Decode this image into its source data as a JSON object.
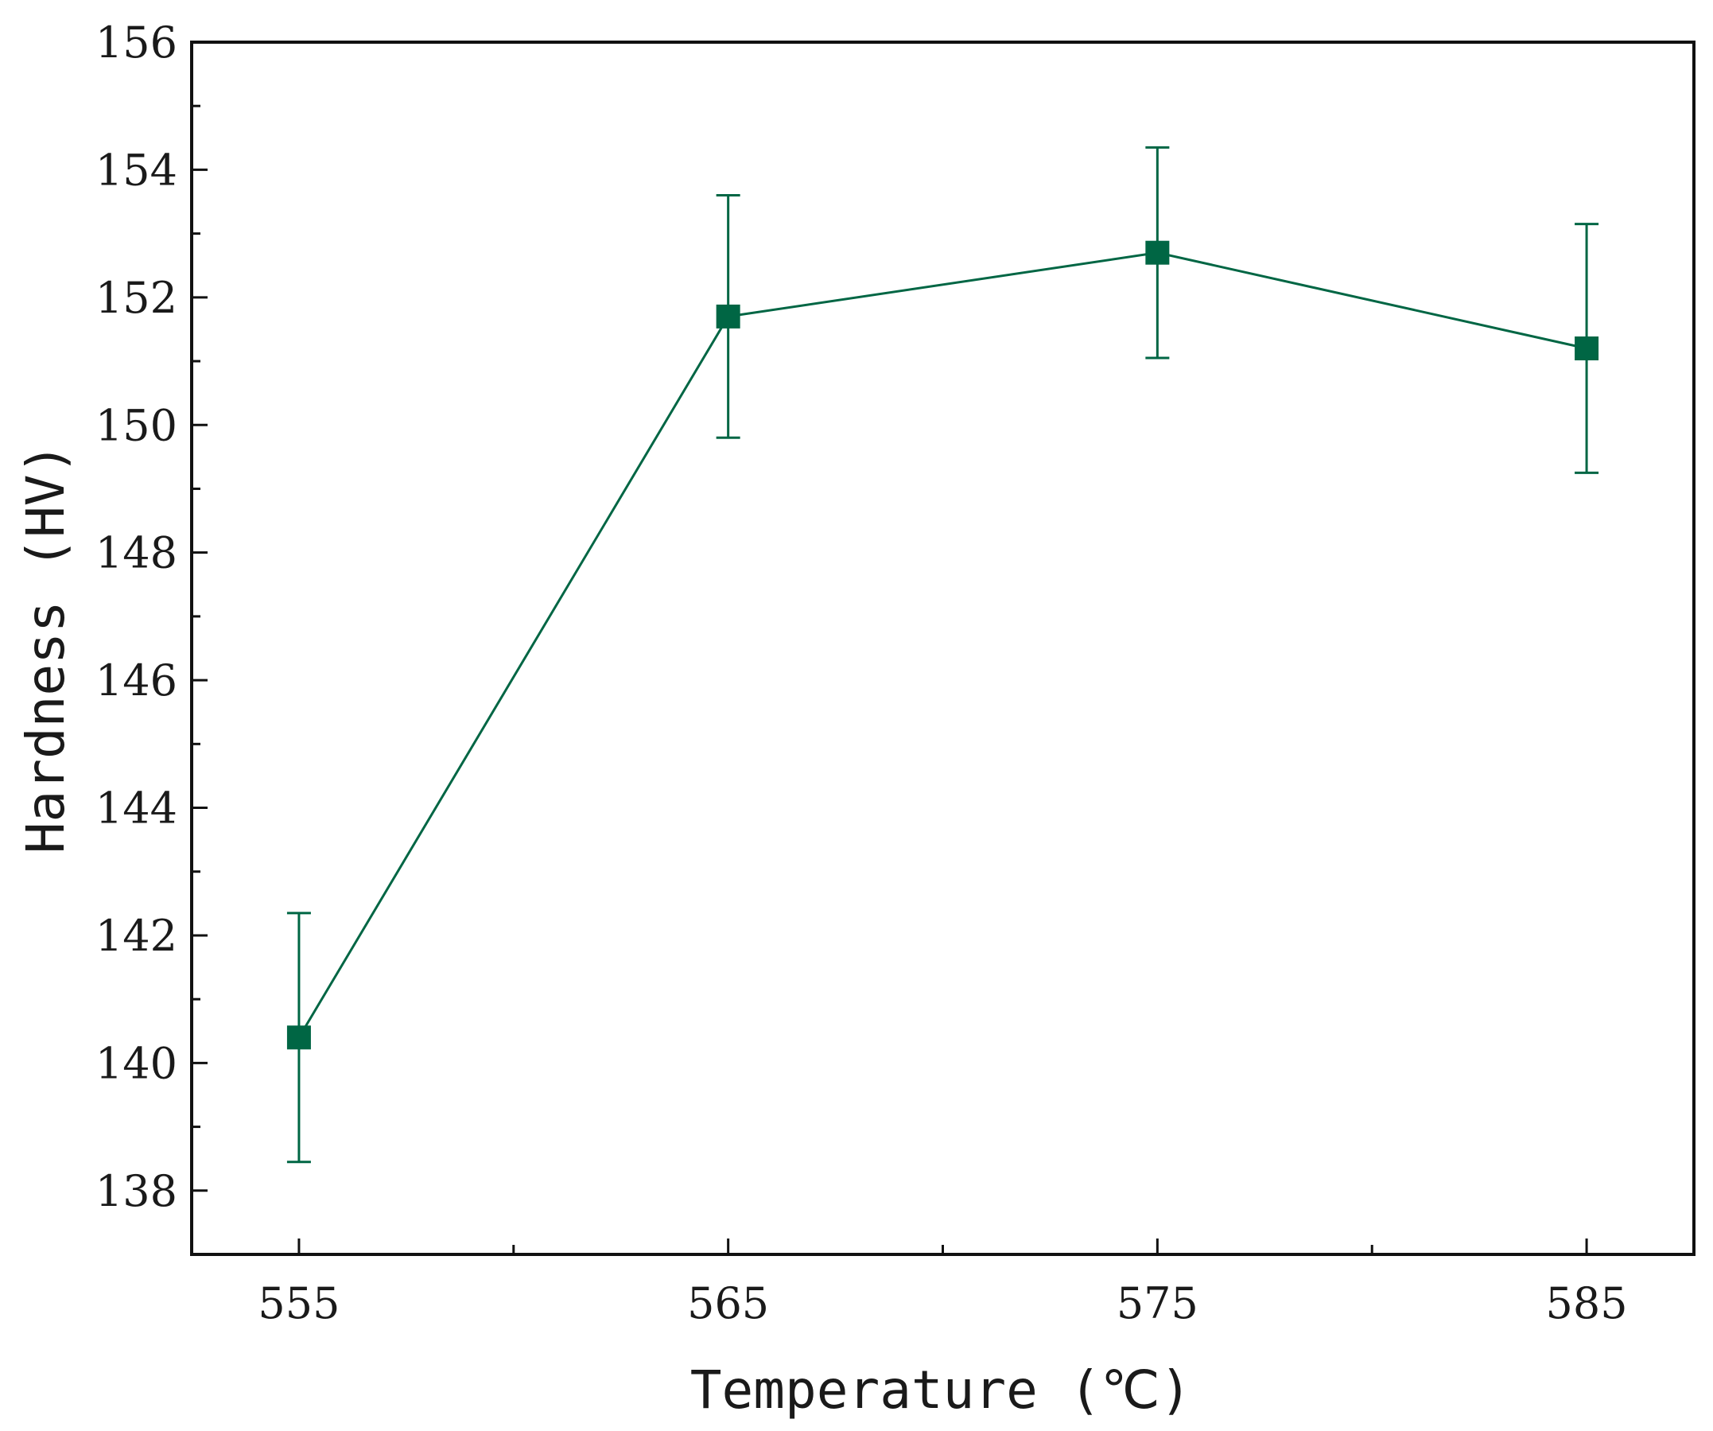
{
  "chart_data": {
    "type": "line",
    "title": "",
    "xlabel": "Temperature (℃)",
    "ylabel": "Hardness (HV)",
    "x": [
      555,
      565,
      575,
      585
    ],
    "x_tick_labels": [
      "555",
      "565",
      "575",
      "585"
    ],
    "series": [
      {
        "name": "Hardness",
        "values": [
          140.4,
          151.7,
          152.7,
          151.2
        ],
        "error_bars": [
          1.95,
          1.9,
          1.65,
          1.95
        ],
        "marker": "square",
        "color": "#006644"
      }
    ],
    "xlim": [
      552.5,
      587.5
    ],
    "ylim": [
      137,
      156
    ],
    "x_major_ticks": [
      555,
      565,
      575,
      585
    ],
    "x_minor_ticks": [
      560,
      570,
      580
    ],
    "y_major_ticks": [
      138,
      140,
      142,
      144,
      146,
      148,
      150,
      152,
      154,
      156
    ],
    "y_tick_labels": [
      "138",
      "140",
      "142",
      "144",
      "146",
      "148",
      "150",
      "152",
      "154",
      "156"
    ],
    "grid": false,
    "legend": "none"
  }
}
